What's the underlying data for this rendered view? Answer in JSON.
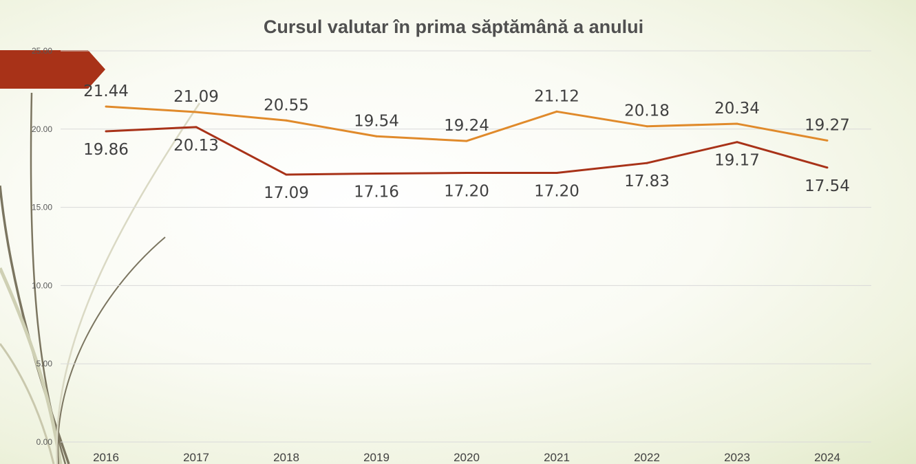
{
  "chart_data": {
    "type": "line",
    "title": "Cursul valutar în prima săptămână a anului",
    "xlabel": "",
    "ylabel": "",
    "categories": [
      "2016",
      "2017",
      "2018",
      "2019",
      "2020",
      "2021",
      "2022",
      "2023",
      "2024"
    ],
    "ylim": [
      0,
      25
    ],
    "yticks": [
      "0.00",
      "5.00",
      "10.00",
      "15.00",
      "20.00",
      "25.00"
    ],
    "grid": true,
    "legend": "none",
    "series": [
      {
        "color": "#e08a2b",
        "values": [
          21.44,
          21.09,
          20.55,
          19.54,
          19.24,
          21.12,
          20.18,
          20.34,
          19.27
        ],
        "labels": [
          "21.44",
          "21.09",
          "20.55",
          "19.54",
          "19.24",
          "21.12",
          "20.18",
          "20.34",
          "19.27"
        ]
      },
      {
        "color": "#a83218",
        "values": [
          19.86,
          20.13,
          17.09,
          17.16,
          17.2,
          17.2,
          17.83,
          19.17,
          17.54
        ],
        "labels": [
          "19.86",
          "20.13",
          "17.09",
          "17.16",
          "17.20",
          "17.20",
          "17.83",
          "19.17",
          "17.54"
        ]
      }
    ]
  }
}
